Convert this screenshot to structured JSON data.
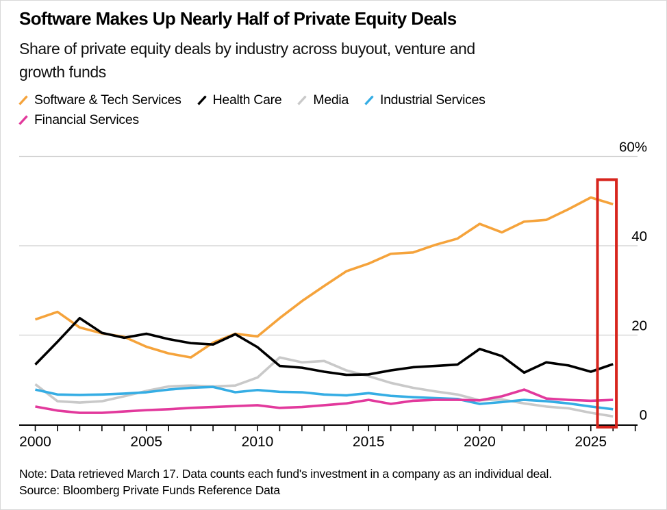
{
  "header": {
    "title": "Software Makes Up Nearly Half of Private Equity Deals",
    "subtitle_line1": "Share of private equity deals by industry across buyout, venture and",
    "subtitle_line2": "growth funds"
  },
  "chart_data": {
    "type": "line",
    "title": "Software Makes Up Nearly Half of Private Equity Deals",
    "subtitle": "Share of private equity deals by industry across buyout, venture and growth funds",
    "x": [
      2000,
      2001,
      2002,
      2003,
      2004,
      2005,
      2006,
      2007,
      2008,
      2009,
      2010,
      2011,
      2012,
      2013,
      2014,
      2015,
      2016,
      2017,
      2018,
      2019,
      2020,
      2021,
      2022,
      2023,
      2024,
      2025,
      2026
    ],
    "x_label_years": [
      "2000",
      "2005",
      "2010",
      "2015",
      "2020",
      "2025"
    ],
    "ylim": [
      0,
      60
    ],
    "grid": "horizontal",
    "legend_position": "top",
    "y_ticks": [
      {
        "value": 60,
        "label": "60%"
      },
      {
        "value": 40,
        "label": "40"
      },
      {
        "value": 20,
        "label": "20"
      },
      {
        "value": 0,
        "label": "0"
      }
    ],
    "series": [
      {
        "name": "Software & Tech Services",
        "color": "#F5A33B",
        "values": [
          23.5,
          25.2,
          21.7,
          20.4,
          19.6,
          17.4,
          15.9,
          15.0,
          18.3,
          20.3,
          19.7,
          23.8,
          27.6,
          31.0,
          34.3,
          36.0,
          38.2,
          38.5,
          40.2,
          41.6,
          44.9,
          43.0,
          45.4,
          45.8,
          48.2,
          50.8,
          49.3
        ]
      },
      {
        "name": "Health Care",
        "color": "#000000",
        "values": [
          13.4,
          18.5,
          23.8,
          20.5,
          19.4,
          20.3,
          19.1,
          18.2,
          17.9,
          20.2,
          17.3,
          13.1,
          12.7,
          11.8,
          11.1,
          11.2,
          12.1,
          12.8,
          13.1,
          13.4,
          16.9,
          15.3,
          11.6,
          13.9,
          13.2,
          11.8,
          13.5
        ]
      },
      {
        "name": "Media",
        "color": "#C9C9C9",
        "values": [
          9.0,
          5.2,
          4.9,
          5.2,
          6.3,
          7.5,
          8.5,
          8.7,
          8.5,
          8.7,
          10.5,
          15.0,
          13.9,
          14.2,
          12.1,
          10.8,
          9.3,
          8.2,
          7.4,
          6.7,
          5.4,
          5.6,
          4.7,
          4.0,
          3.6,
          2.6,
          1.8
        ]
      },
      {
        "name": "Industrial Services",
        "color": "#35ADE4",
        "values": [
          7.8,
          6.7,
          6.6,
          6.7,
          6.9,
          7.2,
          7.8,
          8.2,
          8.4,
          7.2,
          7.7,
          7.3,
          7.2,
          6.7,
          6.5,
          7.0,
          6.4,
          6.1,
          5.9,
          5.7,
          4.6,
          5.0,
          5.5,
          5.2,
          4.7,
          4.0,
          3.4
        ]
      },
      {
        "name": "Financial Services",
        "color": "#E2399C",
        "values": [
          4.0,
          3.1,
          2.6,
          2.6,
          2.9,
          3.2,
          3.4,
          3.7,
          3.9,
          4.1,
          4.3,
          3.7,
          3.9,
          4.3,
          4.7,
          5.5,
          4.6,
          5.3,
          5.5,
          5.5,
          5.4,
          6.3,
          7.8,
          5.8,
          5.5,
          5.3,
          5.5
        ]
      }
    ],
    "highlight_box": {
      "color": "#D7251D",
      "x_from_year": 2025.3,
      "x_to_year": 2026.15,
      "y_from_value": -0.6,
      "y_to_value": 54.8
    }
  },
  "footer": {
    "note": "Note: Data retrieved March 17. Data counts each fund's investment in a company as an individual deal.",
    "source": "Source: Bloomberg Private Funds Reference Data"
  }
}
